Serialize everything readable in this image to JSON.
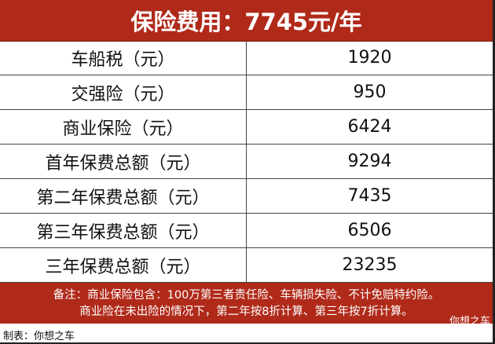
{
  "title": "保险费用：7745元/年",
  "rows": [
    {
      "label": "车船税（元）",
      "value": "1920"
    },
    {
      "label": "交强险（元）",
      "value": "950"
    },
    {
      "label": "商业保险（元）",
      "value": "6424"
    },
    {
      "label": "首年保费总额（元）",
      "value": "9294"
    },
    {
      "label": "第二年保费总额（元）",
      "value": "7435"
    },
    {
      "label": "第三年保费总额（元）",
      "value": "6506"
    },
    {
      "label": "三年保费总额（元）",
      "value": "23235"
    }
  ],
  "note": {
    "line1": "备注：商业保险包含：100万第三者责任险、车辆损失险、不计免赔特约险。",
    "line2": "商业险在未出险的情况下，第二年按8折计算、第三年按7折计算。"
  },
  "watermark": "你想之车",
  "footer": "制表：你想之车",
  "colors": {
    "header_bg": "#b02a1a",
    "text_on_header": "#ffffff"
  }
}
